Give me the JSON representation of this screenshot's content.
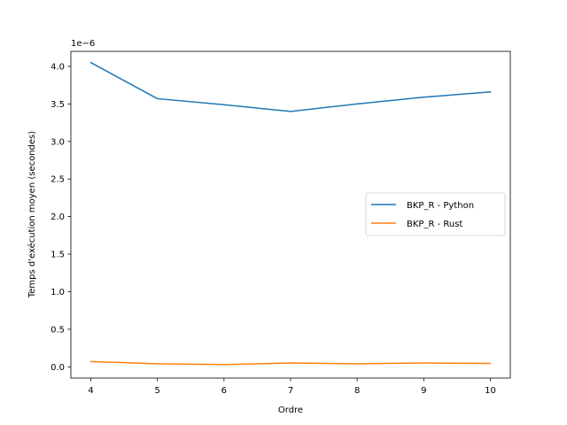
{
  "chart_data": {
    "type": "line",
    "title": "",
    "xlabel": "Ordre",
    "ylabel": "Temps d'exécution moyen (secondes)",
    "y_offset_label": "1e−6",
    "y_scale": 1e-06,
    "x": [
      4,
      5,
      6,
      7,
      8,
      9,
      10
    ],
    "xlim": [
      3.7,
      10.3
    ],
    "ylim": [
      -0.15,
      4.2
    ],
    "x_ticks": [
      4,
      5,
      6,
      7,
      8,
      9,
      10
    ],
    "y_ticks": [
      0.0,
      0.5,
      1.0,
      1.5,
      2.0,
      2.5,
      3.0,
      3.5,
      4.0
    ],
    "y_tick_labels": [
      "0.0",
      "0.5",
      "1.0",
      "1.5",
      "2.0",
      "2.5",
      "3.0",
      "3.5",
      "4.0"
    ],
    "grid": false,
    "legend_position": "center-right",
    "series": [
      {
        "name": "BKP_R - Python",
        "color": "#1f77b4",
        "values": [
          4.05,
          3.57,
          3.49,
          3.4,
          3.5,
          3.59,
          3.66
        ]
      },
      {
        "name": "BKP_R - Rust",
        "color": "#ff7f0e",
        "values": [
          0.07,
          0.04,
          0.03,
          0.05,
          0.04,
          0.05,
          0.045
        ]
      }
    ]
  }
}
